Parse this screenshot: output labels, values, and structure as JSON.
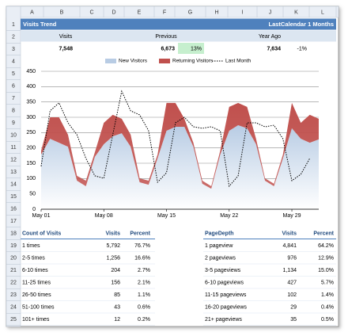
{
  "columns": [
    "A",
    "B",
    "C",
    "D",
    "E",
    "F",
    "G",
    "H",
    "I",
    "J",
    "K",
    "L"
  ],
  "rows": [
    1,
    2,
    3,
    4,
    5,
    6,
    7,
    8,
    9,
    10,
    11,
    12,
    13,
    14,
    15,
    16,
    17,
    18,
    19,
    20,
    21,
    22,
    23,
    24,
    25
  ],
  "header": {
    "title": "Visits Trend",
    "period": "LastCalendar 1 Months"
  },
  "summary": {
    "labels": [
      "Visits",
      "Previous",
      "Year Ago"
    ],
    "visits": "7,548",
    "previous": "6,673",
    "previous_change": "13%",
    "year_ago": "7,634",
    "year_ago_change": "-1%"
  },
  "chart_data": {
    "type": "stacked-area",
    "categories": [
      "May 01",
      null,
      null,
      null,
      null,
      null,
      null,
      "May 08",
      null,
      null,
      null,
      null,
      null,
      null,
      "May 15",
      null,
      null,
      null,
      null,
      null,
      null,
      "May 22",
      null,
      null,
      null,
      null,
      null,
      null,
      "May 29",
      null,
      null,
      null
    ],
    "series": [
      {
        "name": "New Visitors",
        "color": "#b8cce4",
        "values": [
          178,
          230,
          217,
          204,
          93,
          75,
          171,
          212,
          238,
          248,
          204,
          88,
          80,
          166,
          256,
          269,
          269,
          204,
          83,
          67,
          178,
          256,
          274,
          264,
          212,
          93,
          75,
          166,
          264,
          230,
          217,
          228
        ]
      },
      {
        "name": "Returning Visitors",
        "color": "#c0504d",
        "values": [
          13,
          70,
          83,
          39,
          16,
          18,
          15,
          70,
          70,
          47,
          39,
          13,
          13,
          12,
          91,
          78,
          26,
          13,
          10,
          8,
          13,
          78,
          73,
          70,
          18,
          8,
          8,
          12,
          83,
          52,
          91,
          67
        ]
      },
      {
        "name": "Last Month",
        "color": "#000000",
        "type": "line",
        "values": [
          140,
          321,
          347,
          282,
          243,
          166,
          109,
          101,
          243,
          385,
          321,
          308,
          256,
          88,
          119,
          282,
          300,
          269,
          264,
          269,
          256,
          75,
          109,
          282,
          282,
          269,
          274,
          230,
          93,
          114,
          166,
          null
        ]
      }
    ],
    "ylim": [
      0,
      450
    ],
    "yticks": [
      0,
      50,
      100,
      150,
      200,
      250,
      300,
      350,
      400,
      450
    ],
    "grid": true,
    "legend": "top"
  },
  "tables": [
    {
      "headers": [
        "Count of Visits",
        "Visits",
        "Percent"
      ],
      "rows": [
        [
          "1 times",
          "5,792",
          "76.7%"
        ],
        [
          "2-5 times",
          "1,256",
          "16.6%"
        ],
        [
          "6-10 times",
          "204",
          "2.7%"
        ],
        [
          "11-25 times",
          "156",
          "2.1%"
        ],
        [
          "26-50 times",
          "85",
          "1.1%"
        ],
        [
          "51-100 times",
          "43",
          "0.6%"
        ],
        [
          "101+ times",
          "12",
          "0.2%"
        ]
      ]
    },
    {
      "headers": [
        "PageDepth",
        "Visits",
        "Percent"
      ],
      "rows": [
        [
          "1 pageview",
          "4,841",
          "64.2%"
        ],
        [
          "2 pageviews",
          "976",
          "12.9%"
        ],
        [
          "3-5 pageviews",
          "1,134",
          "15.0%"
        ],
        [
          "6-10 pageviews",
          "427",
          "5.7%"
        ],
        [
          "11-15 pageviews",
          "102",
          "1.4%"
        ],
        [
          "16-20 pageviews",
          "29",
          "0.4%"
        ],
        [
          "21+ pageviews",
          "35",
          "0.5%"
        ]
      ]
    }
  ]
}
